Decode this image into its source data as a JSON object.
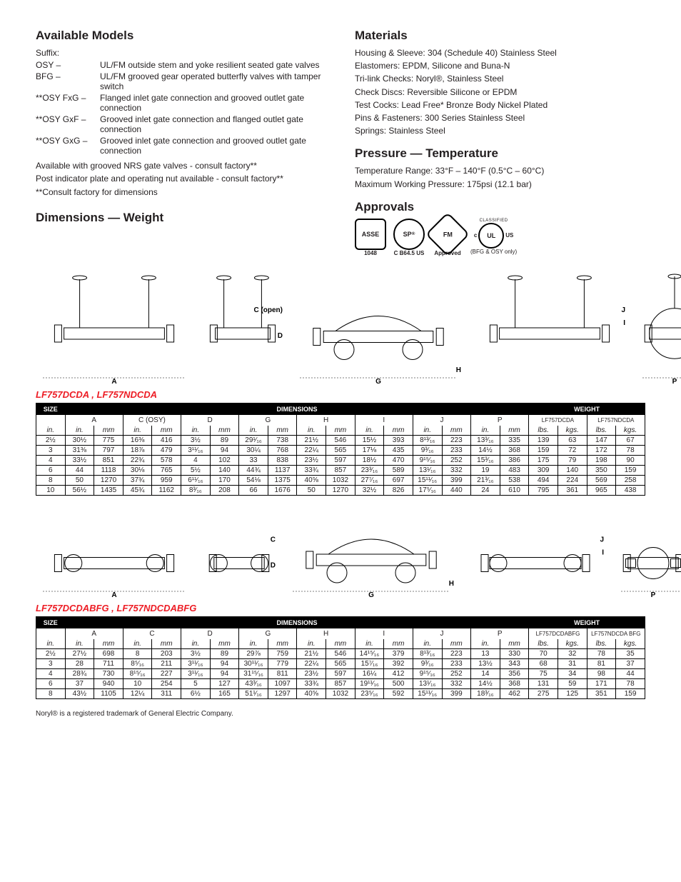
{
  "left": {
    "heading_models": "Available Models",
    "suffix_label": "Suffix:",
    "suffixes": [
      {
        "k": "OSY –",
        "v": "UL/FM outside stem and yoke resilient seated gate valves"
      },
      {
        "k": "BFG –",
        "v": "UL/FM grooved gear operated butterfly valves with tamper switch"
      },
      {
        "k": "**OSY FxG –",
        "v": "Flanged inlet gate connection and grooved outlet gate connection"
      },
      {
        "k": "**OSY GxF –",
        "v": "Grooved inlet gate connection and flanged outlet gate connection"
      },
      {
        "k": "**OSY GxG –",
        "v": "Grooved inlet gate connection and grooved outlet gate connection"
      }
    ],
    "notes": [
      "Available with grooved NRS gate valves - consult factory**",
      "Post indicator plate and operating nut available - consult factory**",
      "**Consult factory for dimensions"
    ],
    "heading_dim": "Dimensions — Weight"
  },
  "right": {
    "heading_materials": "Materials",
    "materials": [
      "Housing & Sleeve: 304 (Schedule 40) Stainless Steel",
      "Elastomers: EPDM, Silicone and Buna-N",
      "Tri-link Checks: Noryl®, Stainless Steel",
      "Check Discs: Reversible Silicone or EPDM",
      "Test Cocks: Lead Free* Bronze Body Nickel Plated",
      "Pins & Fasteners: 300 Series Stainless Steel",
      "Springs: Stainless Steel"
    ],
    "heading_pressure": "Pressure — Temperature",
    "pressure": [
      "Temperature Range: 33°F – 140°F (0.5°C – 60°C)",
      "Maximum Working Pressure: 175psi (12.1 bar)"
    ],
    "heading_approvals": "Approvals",
    "approvals": {
      "asse": "ASSE",
      "asse_sub": "1048",
      "sp": "SP",
      "sp_sub": "C B64.5 US",
      "sp_reg": "®",
      "fm": "FM",
      "fm_sub": "Approved",
      "ul": "UL",
      "ul_pre": "c",
      "ul_post": "US",
      "ul_top": "CLASSIFIED",
      "ul_note": "(BFG & OSY only)"
    }
  },
  "table1": {
    "title": "LF757DCDA , LF757NDCDA",
    "top": {
      "size": "SIZE",
      "dim": "DIMENSIONS",
      "wt": "WEIGHT"
    },
    "groups": [
      "A",
      "C (OSY)",
      "D",
      "G",
      "H",
      "I",
      "J",
      "P"
    ],
    "wcols": [
      "LF757DCDA",
      "LF757NDCDA"
    ],
    "units_in": "in.",
    "units_mm": "mm",
    "units_lbs": "lbs.",
    "units_kgs": "kgs.",
    "rows": [
      [
        "2½",
        "30½",
        "775",
        "16⅜",
        "416",
        "3½",
        "89",
        "29¹⁄₁₆",
        "738",
        "21½",
        "546",
        "15½",
        "393",
        "8¹³⁄₁₆",
        "223",
        "13³⁄₁₆",
        "335",
        "139",
        "63",
        "147",
        "67"
      ],
      [
        "3",
        "31⅜",
        "797",
        "18⅞",
        "479",
        "3¹¹⁄₁₆",
        "94",
        "30¼",
        "768",
        "22¼",
        "565",
        "17⅛",
        "435",
        "9³⁄₁₆",
        "233",
        "14½",
        "368",
        "159",
        "72",
        "172",
        "78"
      ],
      [
        "4",
        "33½",
        "851",
        "22¾",
        "578",
        "4",
        "102",
        "33",
        "838",
        "23½",
        "597",
        "18½",
        "470",
        "9¹⁵⁄₁₆",
        "252",
        "15³⁄₁₆",
        "386",
        "175",
        "79",
        "198",
        "90"
      ],
      [
        "6",
        "44",
        "1118",
        "30⅛",
        "765",
        "5½",
        "140",
        "44¾",
        "1137",
        "33¾",
        "857",
        "23³⁄₁₆",
        "589",
        "13¹⁄₁₆",
        "332",
        "19",
        "483",
        "309",
        "140",
        "350",
        "159"
      ],
      [
        "8",
        "50",
        "1270",
        "37¾",
        "959",
        "6¹¹⁄₁₆",
        "170",
        "54⅛",
        "1375",
        "40⅝",
        "1032",
        "27⁷⁄₁₆",
        "697",
        "15¹¹⁄₁₆",
        "399",
        "21³⁄₁₆",
        "538",
        "494",
        "224",
        "569",
        "258"
      ],
      [
        "10",
        "56½",
        "1435",
        "45¾",
        "1162",
        "8³⁄₁₆",
        "208",
        "66",
        "1676",
        "50",
        "1270",
        "32½",
        "826",
        "17⁵⁄₁₆",
        "440",
        "24",
        "610",
        "795",
        "361",
        "965",
        "438"
      ]
    ]
  },
  "table2": {
    "title": "LF757DCDABFG , LF757NDCDABFG",
    "top": {
      "size": "SIZE",
      "dim": "DIMENSIONS",
      "wt": "WEIGHT"
    },
    "groups": [
      "A",
      "C",
      "D",
      "G",
      "H",
      "I",
      "J",
      "P"
    ],
    "wcols": [
      "LF757DCDABFG",
      "LF757NDCDA BFG"
    ],
    "units_in": "in.",
    "units_mm": "mm",
    "units_lbs": "lbs.",
    "units_kgs": "kgs.",
    "rows": [
      [
        "2½",
        "27½",
        "698",
        "8",
        "203",
        "3½",
        "89",
        "29⅞",
        "759",
        "21½",
        "546",
        "14¹⁵⁄₁₆",
        "379",
        "8¹³⁄₁₆",
        "223",
        "13",
        "330",
        "70",
        "32",
        "78",
        "35"
      ],
      [
        "3",
        "28",
        "711",
        "8⁵⁄₁₆",
        "211",
        "3¹¹⁄₁₆",
        "94",
        "30¹¹⁄₁₆",
        "779",
        "22¼",
        "565",
        "15⁷⁄₁₆",
        "392",
        "9³⁄₁₆",
        "233",
        "13½",
        "343",
        "68",
        "31",
        "81",
        "37"
      ],
      [
        "4",
        "28¾",
        "730",
        "8¹⁵⁄₁₆",
        "227",
        "3¹¹⁄₁₆",
        "94",
        "31¹⁵⁄₁₆",
        "811",
        "23½",
        "597",
        "16¼",
        "412",
        "9¹⁵⁄₁₆",
        "252",
        "14",
        "356",
        "75",
        "34",
        "98",
        "44"
      ],
      [
        "6",
        "37",
        "940",
        "10",
        "254",
        "5",
        "127",
        "43³⁄₁₆",
        "1097",
        "33¾",
        "857",
        "19¹¹⁄₁₆",
        "500",
        "13¹⁄₁₆",
        "332",
        "14½",
        "368",
        "131",
        "59",
        "171",
        "78"
      ],
      [
        "8",
        "43½",
        "1105",
        "12¼",
        "311",
        "6½",
        "165",
        "51¹⁄₁₆",
        "1297",
        "40⅝",
        "1032",
        "23⁵⁄₁₆",
        "592",
        "15¹¹⁄₁₆",
        "399",
        "18³⁄₁₆",
        "462",
        "275",
        "125",
        "351",
        "159"
      ]
    ]
  },
  "diagrams1": {
    "labels": {
      "A": "A",
      "C": "C (open)",
      "D": "D",
      "G": "G",
      "H": "H",
      "I": "I",
      "J": "J",
      "P": "P"
    }
  },
  "diagrams2": {
    "labels": {
      "A": "A",
      "C": "C",
      "D": "D",
      "G": "G",
      "H": "H",
      "I": "I",
      "J": "J",
      "P": "P"
    }
  },
  "footnote": "Noryl® is a registered trademark of General Electric Company."
}
